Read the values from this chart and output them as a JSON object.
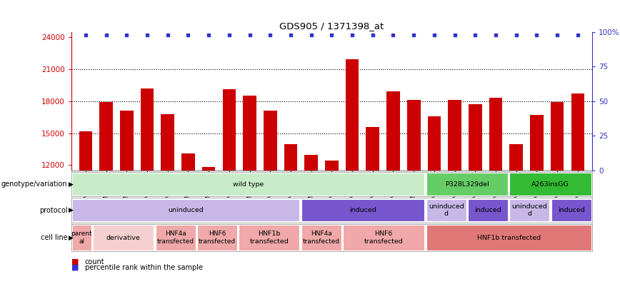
{
  "title": "GDS905 / 1371398_at",
  "samples": [
    "GSM27203",
    "GSM27204",
    "GSM27205",
    "GSM27206",
    "GSM27207",
    "GSM27150",
    "GSM27152",
    "GSM27156",
    "GSM27159",
    "GSM27063",
    "GSM27148",
    "GSM27151",
    "GSM27153",
    "GSM27157",
    "GSM27160",
    "GSM27147",
    "GSM27149",
    "GSM27161",
    "GSM27165",
    "GSM27163",
    "GSM27167",
    "GSM27169",
    "GSM27171",
    "GSM27170",
    "GSM27172"
  ],
  "counts": [
    15200,
    17900,
    17100,
    19200,
    16800,
    13100,
    11800,
    19100,
    18500,
    17100,
    14000,
    13000,
    12400,
    21900,
    15600,
    18900,
    18100,
    16600,
    18100,
    17700,
    18300,
    14000,
    16700,
    17900,
    18700
  ],
  "percentile_ranks": [
    100,
    100,
    100,
    100,
    100,
    100,
    100,
    100,
    100,
    100,
    100,
    100,
    100,
    100,
    100,
    100,
    100,
    100,
    100,
    100,
    100,
    100,
    100,
    100,
    100
  ],
  "ylim_left": [
    11500,
    24500
  ],
  "ylim_right": [
    0,
    100
  ],
  "yticks_left": [
    12000,
    15000,
    18000,
    21000,
    24000
  ],
  "yticks_right": [
    0,
    25,
    50,
    75,
    100
  ],
  "bar_color": "#cc0000",
  "dot_color": "#3333cc",
  "genotype_row": [
    {
      "start": 0,
      "end": 17,
      "label": "wild type",
      "color": "#c8ecc8"
    },
    {
      "start": 17,
      "end": 21,
      "label": "P328L329del",
      "color": "#66cc66"
    },
    {
      "start": 21,
      "end": 25,
      "label": "A263insGG",
      "color": "#33bb33"
    }
  ],
  "protocol_row": [
    {
      "start": 0,
      "end": 11,
      "label": "uninduced",
      "color": "#c8b8e8"
    },
    {
      "start": 11,
      "end": 17,
      "label": "induced",
      "color": "#7755cc"
    },
    {
      "start": 17,
      "end": 19,
      "label": "uninduced\nd",
      "color": "#c8b8e8"
    },
    {
      "start": 19,
      "end": 21,
      "label": "induced",
      "color": "#7755cc"
    },
    {
      "start": 21,
      "end": 23,
      "label": "uninduced\nd",
      "color": "#c8b8e8"
    },
    {
      "start": 23,
      "end": 25,
      "label": "induced",
      "color": "#7755cc"
    }
  ],
  "cell_line_row": [
    {
      "start": 0,
      "end": 1,
      "label": "parent\nal",
      "color": "#f0a8a8"
    },
    {
      "start": 1,
      "end": 4,
      "label": "derivative",
      "color": "#f5d0d0"
    },
    {
      "start": 4,
      "end": 6,
      "label": "HNF4a\ntransfected",
      "color": "#f0a8a8"
    },
    {
      "start": 6,
      "end": 8,
      "label": "HNF6\ntransfected",
      "color": "#f0a8a8"
    },
    {
      "start": 8,
      "end": 11,
      "label": "HNF1b\ntransfected",
      "color": "#f0a8a8"
    },
    {
      "start": 11,
      "end": 13,
      "label": "HNF4a\ntransfected",
      "color": "#f0a8a8"
    },
    {
      "start": 13,
      "end": 17,
      "label": "HNF6\ntransfected",
      "color": "#f0a8a8"
    },
    {
      "start": 17,
      "end": 25,
      "label": "HNF1b transfected",
      "color": "#e07878"
    }
  ],
  "row_labels": [
    "genotype/variation",
    "protocol",
    "cell line"
  ],
  "legend_count_color": "#cc0000",
  "legend_pct_color": "#3333cc"
}
